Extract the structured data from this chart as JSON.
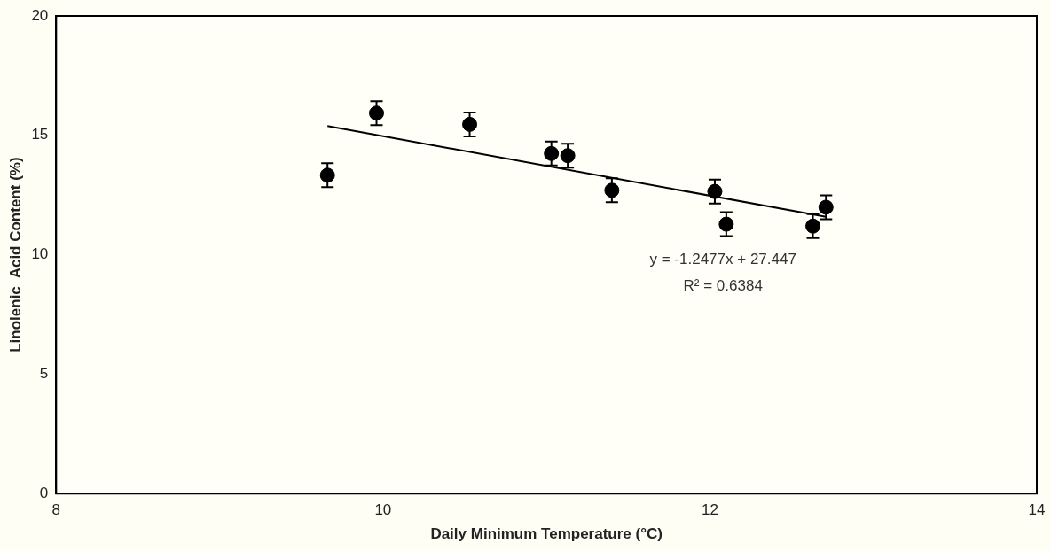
{
  "chart_data": {
    "type": "scatter",
    "xlabel": "Daily Minimum Temperature (°C)",
    "ylabel": "Linolenic  Acid Content (%)",
    "xlim": [
      8,
      14
    ],
    "xticks": [
      8,
      10,
      12,
      14
    ],
    "ylim": [
      0,
      20
    ],
    "yticks": [
      0,
      5,
      10,
      15,
      20
    ],
    "grid": false,
    "legend": false,
    "marker": "circle",
    "series": [
      {
        "type": "scatter",
        "color": "#000000",
        "x": [
          9.66,
          9.96,
          10.53,
          11.03,
          11.13,
          11.4,
          12.03,
          12.1,
          12.63,
          12.71
        ],
        "values": [
          13.33,
          15.93,
          15.46,
          14.24,
          14.15,
          12.7,
          12.65,
          11.28,
          11.2,
          11.99
        ],
        "errors": [
          0.5,
          0.5,
          0.5,
          0.5,
          0.5,
          0.5,
          0.5,
          0.5,
          0.5,
          0.5
        ]
      },
      {
        "type": "line",
        "marker": "none",
        "color": "#000000",
        "x": [
          9.66,
          12.71
        ],
        "values": [
          15.39,
          11.59
        ]
      }
    ],
    "annotations": [
      "y = -1.2477x + 27.447",
      "R² = 0.6384"
    ]
  }
}
